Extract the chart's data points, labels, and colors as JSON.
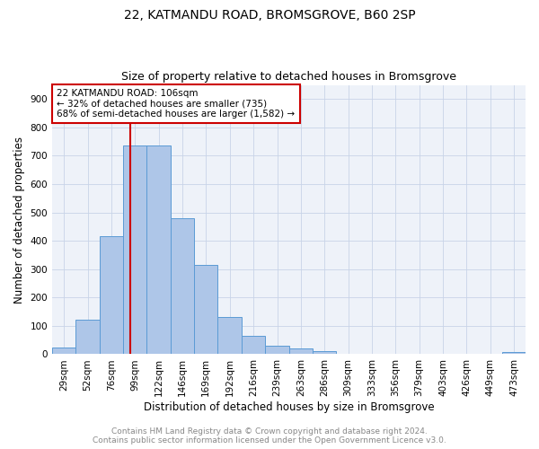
{
  "title1": "22, KATMANDU ROAD, BROMSGROVE, B60 2SP",
  "title2": "Size of property relative to detached houses in Bromsgrove",
  "xlabel": "Distribution of detached houses by size in Bromsgrove",
  "ylabel": "Number of detached properties",
  "annotation_line1": "22 KATMANDU ROAD: 106sqm",
  "annotation_line2": "← 32% of detached houses are smaller (735)",
  "annotation_line3": "68% of semi-detached houses are larger (1,582) →",
  "bin_edges": [
    29,
    52,
    76,
    99,
    122,
    146,
    169,
    192,
    216,
    239,
    263,
    286,
    309,
    333,
    356,
    379,
    403,
    426,
    449,
    473,
    496
  ],
  "bar_heights": [
    25,
    122,
    418,
    735,
    735,
    480,
    315,
    130,
    65,
    30,
    22,
    12,
    0,
    0,
    0,
    0,
    0,
    0,
    0,
    8
  ],
  "bar_color": "#aec6e8",
  "bar_edge_color": "#5b9bd5",
  "property_line_x": 106,
  "property_line_color": "#cc0000",
  "annotation_box_color": "#cc0000",
  "ylim": [
    0,
    950
  ],
  "yticks": [
    0,
    100,
    200,
    300,
    400,
    500,
    600,
    700,
    800,
    900
  ],
  "title1_fontsize": 10,
  "title2_fontsize": 9,
  "xlabel_fontsize": 8.5,
  "ylabel_fontsize": 8.5,
  "tick_fontsize": 7.5,
  "annot_fontsize": 7.5,
  "footnote_fontsize": 6.5,
  "footnote": "Contains HM Land Registry data © Crown copyright and database right 2024.\nContains public sector information licensed under the Open Government Licence v3.0.",
  "bg_color": "#eef2f9",
  "grid_color": "#c8d4e8"
}
